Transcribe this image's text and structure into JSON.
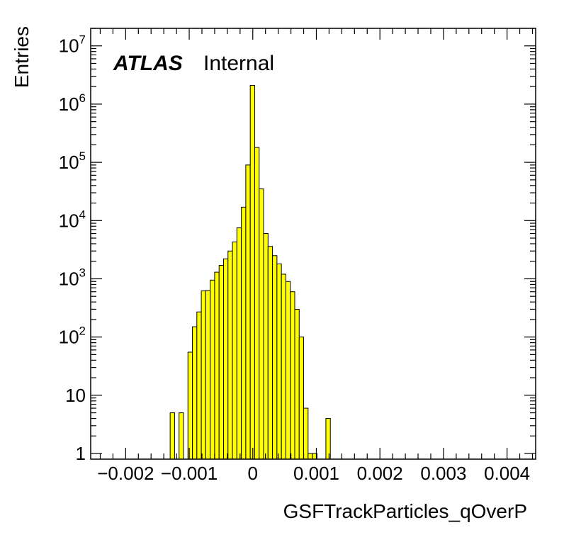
{
  "chart_data": {
    "type": "bar",
    "title": "",
    "xlabel": "GSFTrackParticles_qOverP",
    "ylabel": "Entries",
    "xlim": [
      -0.00255,
      0.00445
    ],
    "ylim": [
      0.8,
      20000000
    ],
    "y_scale": "log",
    "fill_color": "#ffff00",
    "edge_color": "#000000",
    "grid": false,
    "label_atlas": "ATLAS",
    "label_status": "Internal",
    "x_tick_labels": [
      "−0.002",
      "−0.001",
      "0",
      "0.001",
      "0.002",
      "0.003",
      "0.004"
    ],
    "x_ticks": [
      -0.002,
      -0.001,
      0,
      0.001,
      0.002,
      0.003,
      0.004
    ],
    "y_ticks": [
      {
        "value": 1,
        "base": "1",
        "exp": ""
      },
      {
        "value": 10,
        "base": "10",
        "exp": ""
      },
      {
        "value": 100,
        "base": "10",
        "exp": "2"
      },
      {
        "value": 1000,
        "base": "10",
        "exp": "3"
      },
      {
        "value": 10000,
        "base": "10",
        "exp": "4"
      },
      {
        "value": 100000,
        "base": "10",
        "exp": "5"
      },
      {
        "value": 1000000,
        "base": "10",
        "exp": "6"
      },
      {
        "value": 10000000,
        "base": "10",
        "exp": "7"
      }
    ],
    "bin_width": 7e-05,
    "bins_x_low": [
      -0.0013,
      -0.00116,
      -0.00102,
      -0.00095,
      -0.00088,
      -0.00081,
      -0.00074,
      -0.00067,
      -0.0006,
      -0.00053,
      -0.00046,
      -0.00039,
      -0.00032,
      -0.00025,
      -0.00018,
      -0.00011,
      -4e-05,
      3e-05,
      0.0001,
      0.00017,
      0.00024,
      0.00031,
      0.00038,
      0.00045,
      0.00052,
      0.00059,
      0.00066,
      0.00073,
      0.0008,
      0.00087,
      0.00094,
      0.00115
    ],
    "values": [
      5,
      5,
      55,
      150,
      270,
      620,
      630,
      950,
      1300,
      1700,
      2200,
      3000,
      4300,
      7500,
      17000,
      90000,
      2100000,
      180000,
      35000,
      6000,
      3600,
      2500,
      1800,
      1200,
      900,
      600,
      300,
      100,
      6,
      1,
      1,
      4
    ]
  }
}
